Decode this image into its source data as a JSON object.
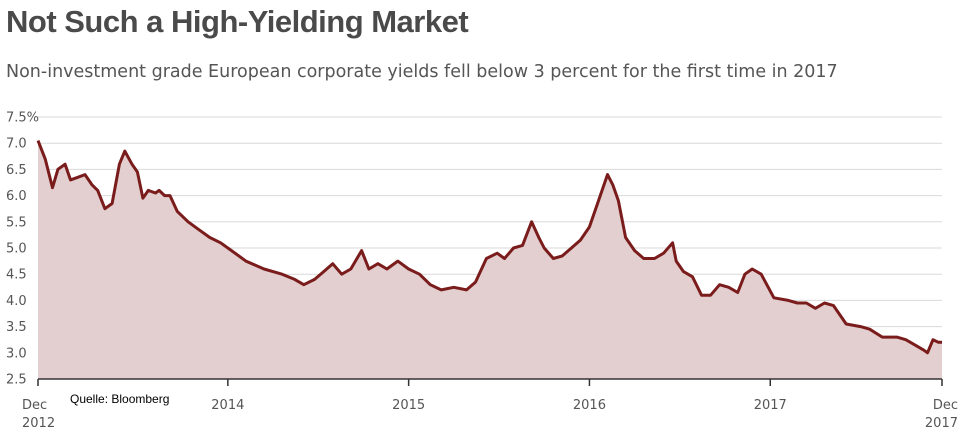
{
  "title": "Not Such a High-Yielding Market",
  "subtitle": "Non-investment grade European corporate yields fell below 3 percent for the first time in 2017",
  "source": "Quelle: Bloomberg",
  "colors": {
    "line": "#7b1c1c",
    "fill": "#e3cfcf",
    "grid": "#d9d9d9",
    "axis": "#333333"
  },
  "chart_data": {
    "type": "area",
    "ylim": [
      2.5,
      7.5
    ],
    "y_ticks": [
      {
        "value": 7.5,
        "label": "7.5%"
      },
      {
        "value": 7.0,
        "label": "7.0"
      },
      {
        "value": 6.5,
        "label": "6.5"
      },
      {
        "value": 6.0,
        "label": "6.0"
      },
      {
        "value": 5.5,
        "label": "5.5"
      },
      {
        "value": 5.0,
        "label": "5.0"
      },
      {
        "value": 4.5,
        "label": "4.5"
      },
      {
        "value": 4.0,
        "label": "4.0"
      },
      {
        "value": 3.5,
        "label": "3.5"
      },
      {
        "value": 3.0,
        "label": "3.0"
      },
      {
        "value": 2.5,
        "label": "2.5"
      }
    ],
    "xlim": [
      2012.95,
      2017.95
    ],
    "x_ticks": [
      {
        "value": 2012.95,
        "label": "Dec",
        "label2": "2012"
      },
      {
        "value": 2014.0,
        "label": "2014",
        "label2": ""
      },
      {
        "value": 2015.0,
        "label": "2015",
        "label2": ""
      },
      {
        "value": 2016.0,
        "label": "2016",
        "label2": ""
      },
      {
        "value": 2017.0,
        "label": "2017",
        "label2": ""
      },
      {
        "value": 2017.95,
        "label": "Dec",
        "label2": "2017"
      }
    ],
    "grid": true,
    "series": [
      {
        "x": [
          2012.95,
          2012.99,
          2013.03,
          2013.06,
          2013.1,
          2013.13,
          2013.17,
          2013.21,
          2013.25,
          2013.28,
          2013.32,
          2013.36,
          2013.4,
          2013.43,
          2013.47,
          2013.5,
          2013.53,
          2013.56,
          2013.6,
          2013.62,
          2013.65,
          2013.68,
          2013.72,
          2013.78,
          2013.84,
          2013.9,
          2013.96,
          2014.02,
          2014.1,
          2014.2,
          2014.3,
          2014.37,
          2014.42,
          2014.48,
          2014.53,
          2014.58,
          2014.63,
          2014.68,
          2014.74,
          2014.78,
          2014.83,
          2014.88,
          2014.94,
          2015.0,
          2015.06,
          2015.12,
          2015.18,
          2015.25,
          2015.32,
          2015.37,
          2015.43,
          2015.49,
          2015.53,
          2015.58,
          2015.63,
          2015.68,
          2015.72,
          2015.75,
          2015.8,
          2015.85,
          2015.9,
          2015.95,
          2016.0,
          2016.05,
          2016.1,
          2016.13,
          2016.16,
          2016.2,
          2016.25,
          2016.3,
          2016.36,
          2016.41,
          2016.46,
          2016.48,
          2016.52,
          2016.57,
          2016.62,
          2016.67,
          2016.72,
          2016.77,
          2016.82,
          2016.86,
          2016.9,
          2016.95,
          2017.02,
          2017.1,
          2017.15,
          2017.2,
          2017.25,
          2017.3,
          2017.35,
          2017.42,
          2017.5,
          2017.55,
          2017.62,
          2017.7,
          2017.75,
          2017.8,
          2017.85,
          2017.87,
          2017.9,
          2017.93,
          2017.95
        ],
        "y": [
          7.05,
          6.7,
          6.15,
          6.5,
          6.6,
          6.3,
          6.35,
          6.4,
          6.2,
          6.1,
          5.75,
          5.85,
          6.6,
          6.85,
          6.6,
          6.45,
          5.95,
          6.1,
          6.05,
          6.1,
          6.0,
          6.0,
          5.7,
          5.5,
          5.35,
          5.2,
          5.1,
          4.95,
          4.75,
          4.6,
          4.5,
          4.4,
          4.3,
          4.4,
          4.55,
          4.7,
          4.5,
          4.6,
          4.95,
          4.6,
          4.7,
          4.6,
          4.75,
          4.6,
          4.5,
          4.3,
          4.2,
          4.25,
          4.2,
          4.35,
          4.8,
          4.9,
          4.8,
          5.0,
          5.05,
          5.5,
          5.2,
          5.0,
          4.8,
          4.85,
          5.0,
          5.15,
          5.4,
          5.9,
          6.4,
          6.2,
          5.9,
          5.2,
          4.95,
          4.8,
          4.8,
          4.9,
          5.1,
          4.75,
          4.55,
          4.45,
          4.1,
          4.1,
          4.3,
          4.25,
          4.15,
          4.5,
          4.6,
          4.5,
          4.05,
          4.0,
          3.95,
          3.95,
          3.85,
          3.95,
          3.9,
          3.55,
          3.5,
          3.45,
          3.3,
          3.3,
          3.25,
          3.15,
          3.05,
          3.0,
          3.25,
          3.2,
          3.2
        ]
      }
    ]
  }
}
